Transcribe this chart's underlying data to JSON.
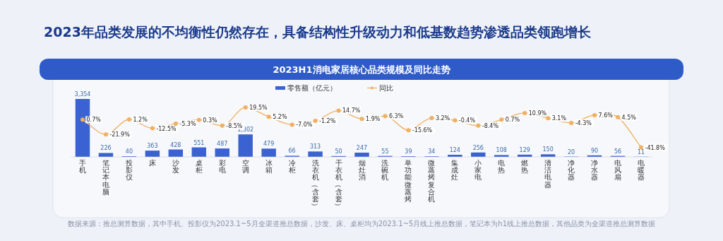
{
  "chart_data": {
    "type": "bar",
    "title": "2023年品类发展的不均衡性仍然存在，具备结构性升级动力和低基数趋势渗透品类领跑增长",
    "subtitle": "2023H1消电家居核心品类规模及同比走势",
    "categories": [
      "手机",
      "笔记本电脑",
      "投影仪",
      "床",
      "沙发",
      "桌柜",
      "彩电",
      "空调",
      "冰箱",
      "冷柜",
      "洗衣机（含套）",
      "干衣机（含套）",
      "烟灶消",
      "洗碗机",
      "单功能微蒸烤",
      "微蒸烤复合机",
      "集成灶",
      "小家电",
      "电热",
      "燃热",
      "清洁电器",
      "净化器",
      "净水器",
      "电风扇",
      "电暖器"
    ],
    "series": [
      {
        "name": "零售额（亿元）",
        "color": "#3a62d2",
        "values": [
          3354,
          226,
          40,
          363,
          428,
          551,
          487,
          1302,
          479,
          66,
          313,
          50,
          247,
          55,
          39,
          34,
          124,
          256,
          108,
          129,
          150,
          20,
          90,
          56,
          11
        ],
        "value_labels": [
          "3,354",
          "226",
          "40",
          "363",
          "428",
          "551",
          "487",
          "1,302",
          "479",
          "66",
          "313",
          "50",
          "247",
          "55",
          "39",
          "34",
          "124",
          "256",
          "108",
          "129",
          "150",
          "20",
          "90",
          "56",
          "11"
        ]
      },
      {
        "name": "同比",
        "type": "line",
        "axis": "y2",
        "color": "#f0b060",
        "marker": "circle",
        "values": [
          0.7,
          -21.9,
          1.2,
          -12.5,
          -5.3,
          0.3,
          -8.5,
          19.5,
          5.2,
          -7.0,
          -1.2,
          14.7,
          1.9,
          6.3,
          -15.6,
          3.2,
          -0.4,
          -8.4,
          0.7,
          10.9,
          3.1,
          -4.3,
          7.6,
          4.5,
          -41.8
        ],
        "value_labels": [
          "0.7%",
          "-21.9%",
          "1.2%",
          "-12.5%",
          "-5.3%",
          "0.3%",
          "-8.5%",
          "19.5%",
          "5.2%",
          "-7.0%",
          "-1.2%",
          "14.7%",
          "1.9%",
          "6.3%",
          "-15.6%",
          "3.2%",
          "-0.4%",
          "-8.4%",
          "0.7%",
          "10.9%",
          "3.1%",
          "-4.3%",
          "7.6%",
          "4.5%",
          "-41.8%"
        ]
      }
    ],
    "legend": "top",
    "annotations": [
      "数据来源：推总测算数据，其中手机、投影仪为2023.1~5月全渠道推总数据，沙发、床、桌柜均为2023.1~5月线上推总数据，笔记本为h1线上推总数据，其他品类为全渠道推总测算数据"
    ]
  }
}
